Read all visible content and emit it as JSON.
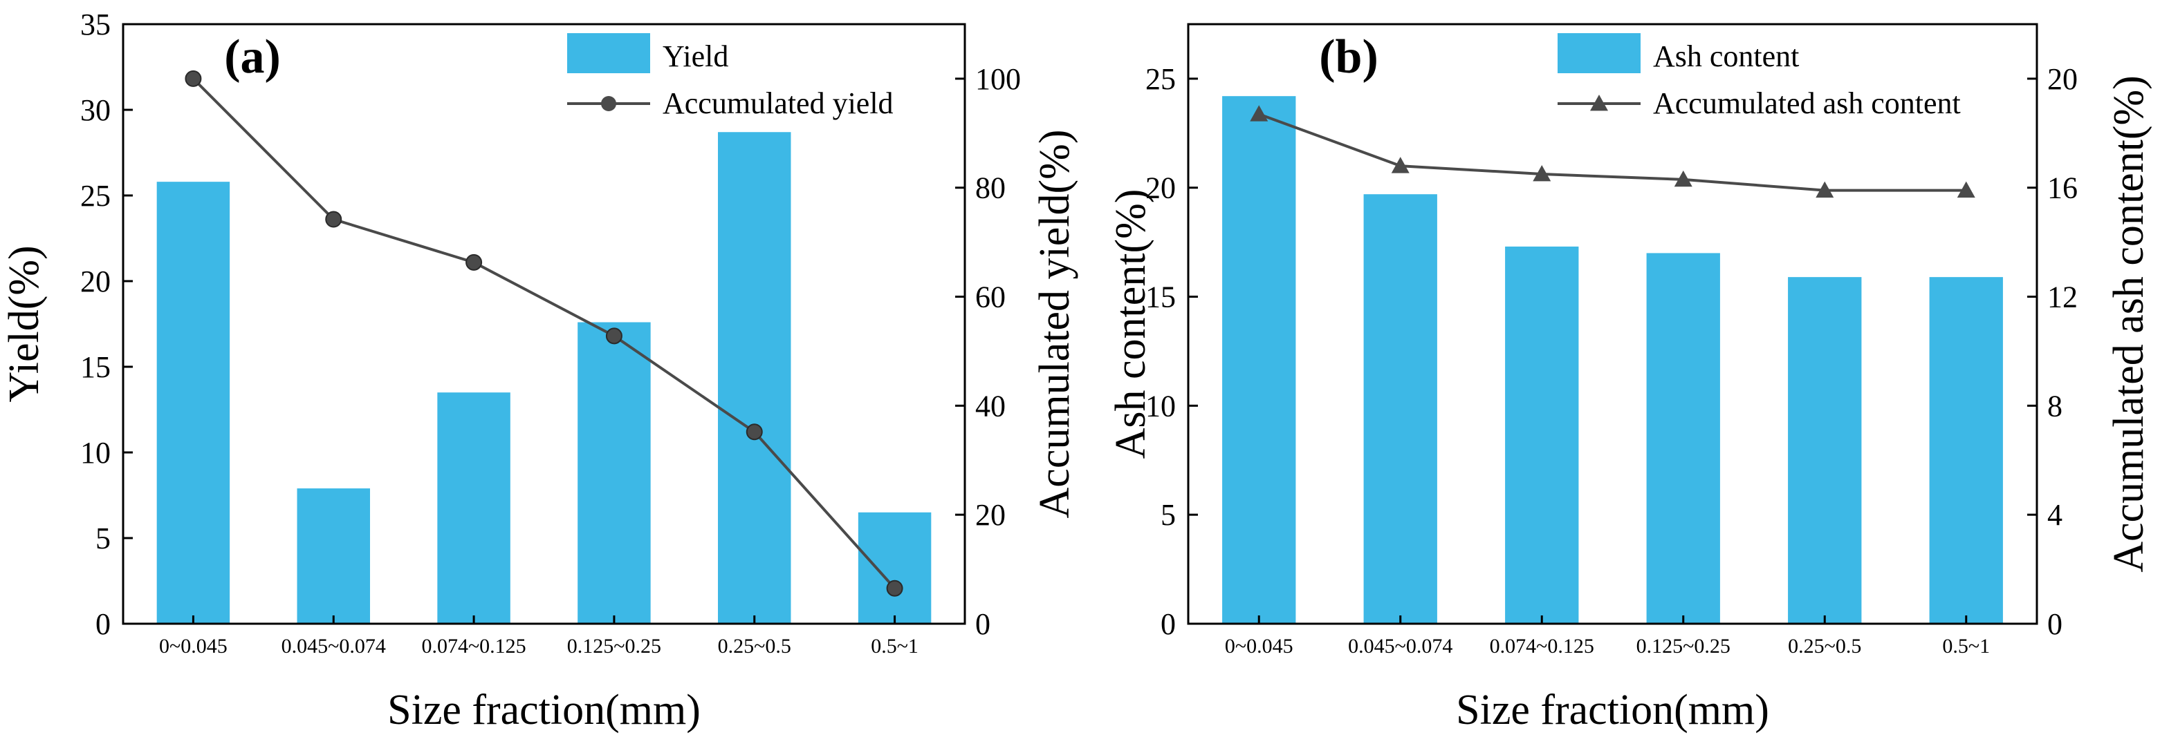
{
  "colors": {
    "bar": "#3db8e6",
    "line": "#4a4a4a",
    "marker": "#4a4a4a"
  },
  "chart_data": [
    {
      "type": "bar",
      "panel_label": "(a)",
      "categories": [
        "0~0.045",
        "0.045~0.074",
        "0.074~0.125",
        "0.125~0.25",
        "0.25~0.5",
        "0.5~1"
      ],
      "xlabel": "Size fraction(mm)",
      "ylabel": "Yield(%)",
      "ylim": [
        0,
        35
      ],
      "yticks": [
        0,
        5,
        10,
        15,
        20,
        25,
        30,
        35
      ],
      "y2label": "Accumulated yield(%)",
      "y2lim": [
        0,
        110
      ],
      "y2ticks": [
        0,
        20,
        40,
        60,
        80,
        100
      ],
      "series": [
        {
          "name": "Yield",
          "kind": "bar",
          "axis": "left",
          "values": [
            25.8,
            7.9,
            13.5,
            17.6,
            28.7,
            6.5
          ]
        },
        {
          "name": "Accumulated yield",
          "kind": "line",
          "axis": "right",
          "marker": "circle",
          "values": [
            100,
            74.2,
            66.3,
            52.8,
            35.2,
            6.5
          ]
        }
      ],
      "legend": "top-right"
    },
    {
      "type": "bar",
      "panel_label": "(b)",
      "categories": [
        "0~0.045",
        "0.045~0.074",
        "0.074~0.125",
        "0.125~0.25",
        "0.25~0.5",
        "0.5~1"
      ],
      "xlabel": "Size fraction(mm)",
      "ylabel": "Ash content(%)",
      "ylim": [
        0,
        27.5
      ],
      "yticks": [
        0,
        5,
        10,
        15,
        20,
        25
      ],
      "y2label": "Accumulated ash content(%)",
      "y2lim": [
        0,
        22
      ],
      "y2ticks": [
        0,
        4,
        8,
        12,
        16,
        20
      ],
      "series": [
        {
          "name": "Ash content",
          "kind": "bar",
          "axis": "left",
          "values": [
            24.2,
            19.7,
            17.3,
            17.0,
            15.9,
            15.9
          ]
        },
        {
          "name": "Accumulated ash content",
          "kind": "line",
          "axis": "right",
          "marker": "triangle",
          "values": [
            18.7,
            16.8,
            16.5,
            16.3,
            15.9,
            15.9
          ]
        }
      ],
      "legend": "top-right"
    }
  ]
}
